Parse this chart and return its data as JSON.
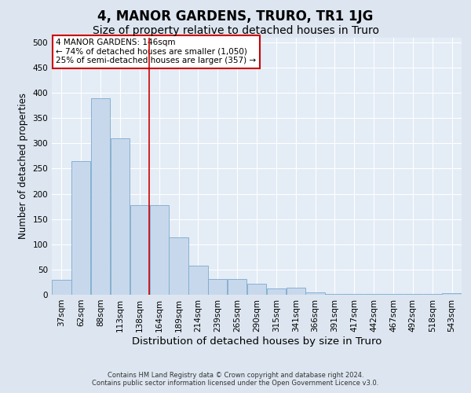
{
  "title": "4, MANOR GARDENS, TRURO, TR1 1JG",
  "subtitle": "Size of property relative to detached houses in Truro",
  "xlabel": "Distribution of detached houses by size in Truro",
  "ylabel": "Number of detached properties",
  "footer_line1": "Contains HM Land Registry data © Crown copyright and database right 2024.",
  "footer_line2": "Contains public sector information licensed under the Open Government Licence v3.0.",
  "categories": [
    "37sqm",
    "62sqm",
    "88sqm",
    "113sqm",
    "138sqm",
    "164sqm",
    "189sqm",
    "214sqm",
    "239sqm",
    "265sqm",
    "290sqm",
    "315sqm",
    "341sqm",
    "366sqm",
    "391sqm",
    "417sqm",
    "442sqm",
    "467sqm",
    "492sqm",
    "518sqm",
    "543sqm"
  ],
  "values": [
    29,
    265,
    390,
    310,
    178,
    178,
    113,
    58,
    31,
    31,
    22,
    12,
    14,
    5,
    1,
    1,
    1,
    1,
    1,
    1,
    3
  ],
  "bar_color": "#c8d8ec",
  "bar_edge_color": "#7aaacb",
  "vline_x_idx": 4.5,
  "vline_color": "#cc0000",
  "annotation_text": "4 MANOR GARDENS: 146sqm\n← 74% of detached houses are smaller (1,050)\n25% of semi-detached houses are larger (357) →",
  "annotation_box_color": "#cc0000",
  "ylim": [
    0,
    510
  ],
  "yticks": [
    0,
    50,
    100,
    150,
    200,
    250,
    300,
    350,
    400,
    450,
    500
  ],
  "bg_color": "#dde6f0",
  "plot_bg_color": "#e4ecf6",
  "title_fontsize": 12,
  "subtitle_fontsize": 10,
  "xlabel_fontsize": 9.5,
  "ylabel_fontsize": 8.5,
  "tick_fontsize": 7.5,
  "annotation_fontsize": 7.5,
  "footer_fontsize": 6
}
